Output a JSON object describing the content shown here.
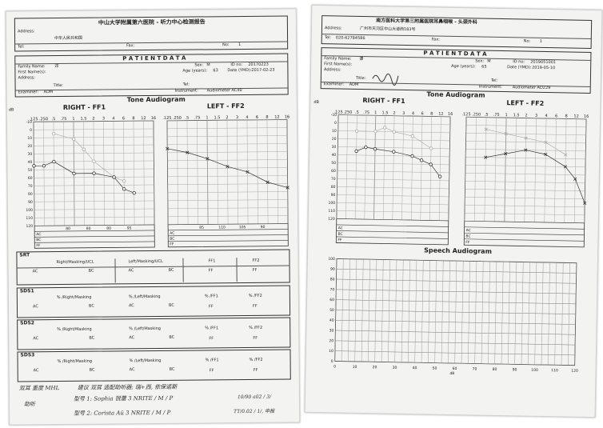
{
  "left": {
    "hospital": "中山大学附属第六医院 - 听力中心检测报告",
    "address_label": "Address:",
    "address_value": "中华人民共和国",
    "tel_label": "Tel:",
    "fax_label": "Fax:",
    "no_label": "No:",
    "no_value": "1",
    "patient_title": "P A T I E N T   D A T A",
    "family_name_label": "Family Name:",
    "family_name_value": "邓",
    "first_name_label": "First Name(s):",
    "sex_label": "Sex:",
    "sex_value": "M",
    "id_label": "ID no:",
    "id_value": "20170223",
    "age_label": "Age (years):",
    "age_value": "63",
    "date_label": "Date (YMD):",
    "date_value": "2017-02-23",
    "address2_label": "Address:",
    "title_label": "Title:",
    "tel2_label": "Tel:",
    "examiner_label": "Examiner:",
    "examiner_value": "ADM",
    "instrument_label": "Instrument:",
    "instrument_value": "Audiometer AC40",
    "audiogram_title": "Tone Audiogram",
    "right_title": "RIGHT - FF1",
    "left_title": "LEFT - FF2",
    "db_label": "dB",
    "freq_labels": [
      ".125",
      ".250",
      ".5",
      ".75",
      "1",
      "1.5",
      "2",
      "3",
      "4",
      "6",
      "8",
      "12",
      "16"
    ],
    "db_labels": [
      "-10",
      "0",
      "10",
      "20",
      "30",
      "40",
      "50",
      "60",
      "70",
      "80",
      "90",
      "100",
      "110",
      "120"
    ],
    "right_row_values": [
      "80",
      "80",
      "80",
      "95"
    ],
    "left_row_values": [
      "85",
      "110",
      "105",
      "90"
    ],
    "row_labels": [
      "AC",
      "BC",
      "FF"
    ],
    "srt_title": "SRT",
    "srt_cols": [
      "Right/Masking/UCL",
      "Left/Masking/UCL",
      "FF1",
      "FF2"
    ],
    "ac": "AC",
    "bc": "BC",
    "ff": "FF",
    "sds_sections": [
      {
        "title": "SDS1",
        "cols": [
          "% /Right/Masking",
          "% /Left/Masking",
          "% /FF1",
          "% /FF2"
        ]
      },
      {
        "title": "SDS2",
        "cols": [
          "% /Right/Masking",
          "% /Left/Masking",
          "% /FF1",
          "% /FF2"
        ]
      },
      {
        "title": "SDS3",
        "cols": [
          "% /Right/Masking",
          "% /Left/Masking",
          "% /FF1",
          "% /FF2"
        ]
      }
    ],
    "handwriting": {
      "line1a": "双耳 重度 MHL",
      "line1b": "建议 双耳 选配助听器;  瑞+西, 依保诺斯",
      "line2a": "助听",
      "line2b": "型号 1:  Sophia  锐蕾 3   NRITE / M / P",
      "line2c": "10/90 a02 / 3/",
      "line3": "型号 2:  Corista  Aü 3   NRITE / M / P",
      "line3c": "TT/0.02 / 1/, 申报"
    }
  },
  "right": {
    "hospital": "南方医科大学第三附属医院耳鼻咽喉 - 头颈外科",
    "address_label": "Address:",
    "address_value": "广州市天河区中山大道西183号",
    "tel_label": "Tel:",
    "tel_value": "020-62784586",
    "fax_label": "Fax:",
    "no_label": "No:",
    "no_value": "1",
    "patient_title": "P A T I E N T   D A T A",
    "family_name_label": "Family Name:",
    "family_name_value": "谭",
    "first_name_label": "First Name(s):",
    "sex_label": "Sex:",
    "sex_value": "M",
    "id_label": "ID no:",
    "id_value": "2019051001",
    "age_label": "Age (years):",
    "age_value": "65",
    "date_label": "Date (YMD):",
    "date_value": "2019-05-10",
    "address2_label": "Address:",
    "title_label": "Title:",
    "tel2_label": "Tel:",
    "examiner_label": "Examiner:",
    "examiner_value": "ADM",
    "instrument_label": "Instrument:",
    "instrument_value": "Audiometer AD229",
    "audiogram_title": "Tone Audiogram",
    "right_title": "RIGHT - FF1",
    "left_title": "LEFT - FF2",
    "db_label": "dB",
    "freq_labels": [
      ".125",
      ".250",
      ".5",
      ".75",
      "1",
      "1.5",
      "2",
      "3",
      "4",
      "6",
      "8",
      "12",
      "16"
    ],
    "db_labels": [
      "-10",
      "0",
      "10",
      "20",
      "30",
      "40",
      "50",
      "60",
      "70",
      "80",
      "90",
      "100",
      "110",
      "120"
    ],
    "row_labels": [
      "AC",
      "BC",
      "FF"
    ],
    "speech_title": "Speech Audiogram",
    "speech_y_labels": [
      "100",
      "90",
      "80",
      "70",
      "60",
      "50",
      "40",
      "30",
      "20",
      "10",
      "0"
    ],
    "speech_x_labels": [
      "0",
      "10",
      "20",
      "30",
      "40",
      "50",
      "60",
      "70",
      "80",
      "90",
      "100",
      "110",
      "120"
    ],
    "speech_x_unit": "dB"
  }
}
